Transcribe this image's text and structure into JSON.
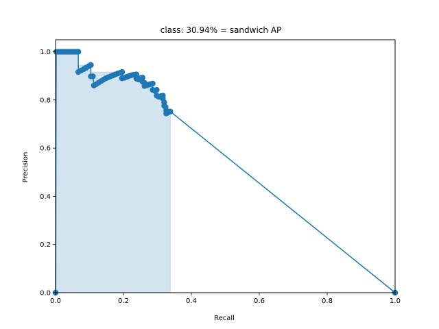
{
  "chart_data": {
    "type": "line",
    "title": "class: 30.94% = sandwich AP",
    "xlabel": "Recall",
    "ylabel": "Precision",
    "xlim": [
      0,
      1
    ],
    "ylim": [
      0,
      1.05
    ],
    "xticks": [
      0.0,
      0.2,
      0.4,
      0.6,
      0.8,
      1.0
    ],
    "yticks": [
      0.0,
      0.2,
      0.4,
      0.6,
      0.8,
      1.0
    ],
    "xtick_labels": [
      "0.0",
      "0.2",
      "0.4",
      "0.6",
      "0.8",
      "1.0"
    ],
    "ytick_labels": [
      "0.0",
      "0.2",
      "0.4",
      "0.6",
      "0.8",
      "1.0"
    ],
    "grid": false,
    "colors": {
      "line": "#1f77b4",
      "fill": "#1f77b4",
      "fill_edge": "#999999"
    },
    "series": [
      {
        "points": [
          [
            0.0,
            0.0
          ],
          [
            0.002,
            1.0
          ],
          [
            0.008,
            1.0
          ],
          [
            0.014,
            1.0
          ],
          [
            0.02,
            1.0
          ],
          [
            0.026,
            1.0
          ],
          [
            0.032,
            1.0
          ],
          [
            0.038,
            1.0
          ],
          [
            0.044,
            1.0
          ],
          [
            0.05,
            1.0
          ],
          [
            0.056,
            1.0
          ],
          [
            0.062,
            1.0
          ],
          [
            0.067,
            1.0
          ],
          [
            0.067,
            0.916
          ],
          [
            0.075,
            0.922
          ],
          [
            0.083,
            0.928
          ],
          [
            0.09,
            0.934
          ],
          [
            0.097,
            0.94
          ],
          [
            0.104,
            0.945
          ],
          [
            0.104,
            0.898
          ],
          [
            0.11,
            0.898
          ],
          [
            0.113,
            0.86
          ],
          [
            0.12,
            0.866
          ],
          [
            0.127,
            0.872
          ],
          [
            0.134,
            0.878
          ],
          [
            0.141,
            0.884
          ],
          [
            0.148,
            0.89
          ],
          [
            0.155,
            0.894
          ],
          [
            0.162,
            0.898
          ],
          [
            0.169,
            0.902
          ],
          [
            0.176,
            0.906
          ],
          [
            0.183,
            0.91
          ],
          [
            0.19,
            0.913
          ],
          [
            0.196,
            0.916
          ],
          [
            0.196,
            0.89
          ],
          [
            0.203,
            0.892
          ],
          [
            0.21,
            0.896
          ],
          [
            0.217,
            0.9
          ],
          [
            0.224,
            0.903
          ],
          [
            0.231,
            0.905
          ],
          [
            0.238,
            0.906
          ],
          [
            0.238,
            0.889
          ],
          [
            0.244,
            0.885
          ],
          [
            0.25,
            0.89
          ],
          [
            0.256,
            0.893
          ],
          [
            0.256,
            0.876
          ],
          [
            0.262,
            0.871
          ],
          [
            0.262,
            0.858
          ],
          [
            0.269,
            0.861
          ],
          [
            0.275,
            0.864
          ],
          [
            0.28,
            0.866
          ],
          [
            0.286,
            0.868
          ],
          [
            0.286,
            0.842
          ],
          [
            0.292,
            0.838
          ],
          [
            0.298,
            0.842
          ],
          [
            0.298,
            0.818
          ],
          [
            0.304,
            0.813
          ],
          [
            0.31,
            0.816
          ],
          [
            0.316,
            0.818
          ],
          [
            0.316,
            0.806
          ],
          [
            0.32,
            0.79
          ],
          [
            0.32,
            0.776
          ],
          [
            0.324,
            0.771
          ],
          [
            0.326,
            0.757
          ],
          [
            0.326,
            0.744
          ],
          [
            0.332,
            0.748
          ],
          [
            0.338,
            0.752
          ],
          [
            1.0,
            0.0
          ]
        ]
      }
    ],
    "area": {
      "points": [
        [
          0.0,
          0.0
        ],
        [
          0.002,
          0.0
        ],
        [
          0.002,
          1.0
        ],
        [
          0.067,
          1.0
        ],
        [
          0.067,
          0.945
        ],
        [
          0.104,
          0.945
        ],
        [
          0.104,
          0.916
        ],
        [
          0.196,
          0.916
        ],
        [
          0.196,
          0.906
        ],
        [
          0.238,
          0.906
        ],
        [
          0.238,
          0.893
        ],
        [
          0.256,
          0.893
        ],
        [
          0.256,
          0.868
        ],
        [
          0.286,
          0.868
        ],
        [
          0.286,
          0.842
        ],
        [
          0.298,
          0.842
        ],
        [
          0.298,
          0.818
        ],
        [
          0.316,
          0.818
        ],
        [
          0.316,
          0.79
        ],
        [
          0.32,
          0.79
        ],
        [
          0.32,
          0.771
        ],
        [
          0.324,
          0.771
        ],
        [
          0.324,
          0.752
        ],
        [
          0.338,
          0.752
        ],
        [
          0.338,
          0.0
        ]
      ]
    }
  }
}
